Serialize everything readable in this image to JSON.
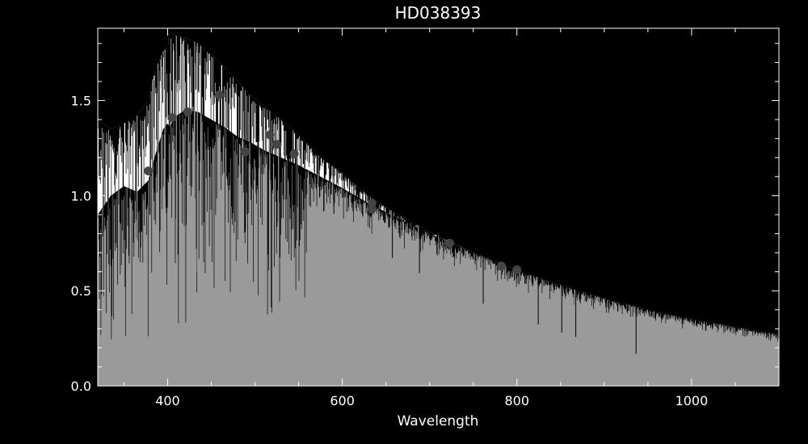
{
  "chart_data": {
    "type": "line",
    "title": "HD038393",
    "xlabel": "Wavelength",
    "ylabel": "",
    "xlim": [
      320,
      1100
    ],
    "ylim": [
      0.0,
      1.88
    ],
    "x_ticks": [
      {
        "value": 400,
        "label": "400"
      },
      {
        "value": 600,
        "label": "600"
      },
      {
        "value": 800,
        "label": "800"
      },
      {
        "value": 1000,
        "label": "1000"
      }
    ],
    "y_ticks": [
      {
        "value": 0.0,
        "label": "0.0"
      },
      {
        "value": 0.5,
        "label": "0.5"
      },
      {
        "value": 1.0,
        "label": "1.0"
      },
      {
        "value": 1.5,
        "label": "1.5"
      }
    ],
    "grid": false,
    "colors": {
      "background": "#000000",
      "axes": "#ffffff",
      "upper_spectrum": "#ffffff",
      "lower_spectrum": "#9a9a9a",
      "points": "#444444"
    },
    "series": [
      {
        "style": "filled-spectrum-upper",
        "x": [
          320,
          335,
          350,
          365,
          378,
          385,
          395,
          400,
          402,
          410,
          420,
          435,
          450,
          465,
          480,
          495,
          510,
          530,
          550,
          575,
          600,
          630,
          660,
          700,
          750,
          800,
          850,
          900,
          950,
          1000,
          1050,
          1100
        ],
        "y": [
          1.4,
          1.35,
          1.38,
          1.42,
          1.5,
          1.65,
          1.76,
          1.78,
          1.86,
          1.84,
          1.83,
          1.8,
          1.74,
          1.68,
          1.6,
          1.53,
          1.47,
          1.4,
          1.32,
          1.2,
          1.12,
          1.0,
          0.91,
          0.81,
          0.7,
          0.61,
          0.53,
          0.46,
          0.4,
          0.35,
          0.31,
          0.27
        ]
      },
      {
        "style": "filled-spectrum-lower",
        "x": [
          320,
          335,
          350,
          365,
          378,
          385,
          395,
          400,
          402,
          410,
          420,
          435,
          450,
          465,
          480,
          495,
          510,
          530,
          550,
          575,
          600,
          630,
          660,
          700,
          750,
          800,
          850,
          900,
          950,
          1000,
          1050,
          1100
        ],
        "y": [
          0.9,
          1.0,
          1.05,
          1.02,
          1.08,
          1.2,
          1.35,
          1.38,
          1.36,
          1.42,
          1.45,
          1.44,
          1.4,
          1.36,
          1.31,
          1.28,
          1.24,
          1.2,
          1.16,
          1.1,
          1.04,
          0.96,
          0.89,
          0.8,
          0.7,
          0.61,
          0.53,
          0.46,
          0.4,
          0.35,
          0.31,
          0.27
        ]
      },
      {
        "style": "photometric-points",
        "x": [
          378,
          405,
          423,
          459,
          489,
          517,
          525,
          545,
          634,
          634,
          723,
          782,
          800
        ],
        "y": [
          1.13,
          1.41,
          1.44,
          1.53,
          1.23,
          1.32,
          1.27,
          1.22,
          0.96,
          0.93,
          0.75,
          0.63,
          0.61
        ]
      }
    ],
    "absorption_lines": [
      {
        "x": 365,
        "depth": 0.2
      },
      {
        "x": 383,
        "depth": 0.3
      },
      {
        "x": 389,
        "depth": 0.25
      },
      {
        "x": 393,
        "depth": 0.1
      },
      {
        "x": 397,
        "depth": 0.08
      },
      {
        "x": 410,
        "depth": 0.55
      },
      {
        "x": 431,
        "depth": 0.55
      },
      {
        "x": 434,
        "depth": 0.6
      },
      {
        "x": 438,
        "depth": 0.5
      },
      {
        "x": 486,
        "depth": 0.62
      },
      {
        "x": 517,
        "depth": 0.55
      },
      {
        "x": 527,
        "depth": 0.5
      },
      {
        "x": 589,
        "depth": 0.55
      },
      {
        "x": 656,
        "depth": 0.17
      },
      {
        "x": 687,
        "depth": 0.45
      },
      {
        "x": 760,
        "depth": 0.48
      },
      {
        "x": 823,
        "depth": 0.36
      },
      {
        "x": 850,
        "depth": 0.33
      },
      {
        "x": 866,
        "depth": 0.3
      },
      {
        "x": 935,
        "depth": 0.3
      }
    ]
  }
}
